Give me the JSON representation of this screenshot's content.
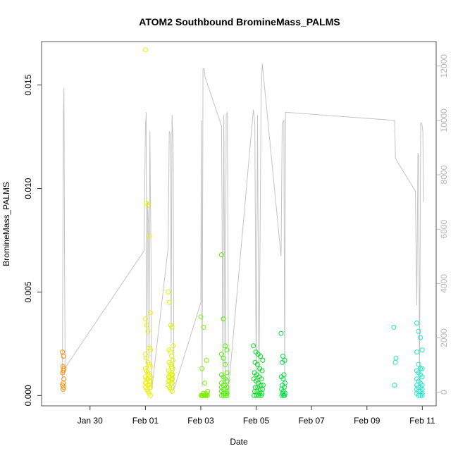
{
  "chart_data": {
    "type": "scatter",
    "title": "ATOM2 Southbound BromineMass_PALMS",
    "xlabel": "Date",
    "ylabel": "BromineMass_PALMS",
    "x_ticks": [
      "Jan 30",
      "Feb 01",
      "Feb 03",
      "Feb 05",
      "Feb 07",
      "Feb 09",
      "Feb 11"
    ],
    "x_tick_days": [
      30,
      32,
      34,
      36,
      38,
      40,
      42
    ],
    "xlim_days": [
      28.25,
      42.5
    ],
    "ylim": [
      -0.0005,
      0.0171
    ],
    "y_ticks": [
      0.0,
      0.005,
      0.01,
      0.015
    ],
    "y_tick_labels": [
      "0.000",
      "0.005",
      "0.010",
      "0.015"
    ],
    "y2lim": [
      -500,
      12900
    ],
    "y2_ticks": [
      0,
      2000,
      4000,
      6000,
      8000,
      10000,
      12000
    ],
    "y2_tick_labels": [
      "0",
      "2000",
      "4000",
      "6000",
      "8000",
      "10000",
      "12000"
    ],
    "series": [
      {
        "color": "#ff8c00",
        "day_range": [
          29.0,
          29.06
        ],
        "values": [
          0.0021,
          0.0019,
          0.0014,
          0.0013,
          0.0012,
          0.0011,
          0.0008,
          0.0006,
          0.0005,
          0.0004,
          0.0003
        ]
      },
      {
        "color": "#f0f000",
        "day_range": [
          32.0,
          32.22
        ],
        "values": [
          0.0167,
          0.0093,
          0.0092,
          0.0077,
          0.004,
          0.0037,
          0.0034,
          0.0031,
          0.0023,
          0.0022,
          0.002,
          0.0018,
          0.0016,
          0.0015,
          0.0014,
          0.0013,
          0.0012,
          0.0011,
          0.001,
          0.0009,
          0.0009,
          0.0008,
          0.0008,
          0.0007,
          0.0007,
          0.0006,
          0.0006,
          0.0005,
          0.0005,
          0.0004,
          0.0004,
          0.0003,
          0.0002,
          0.0001,
          0.0
        ]
      },
      {
        "color": "#ddf200",
        "day_range": [
          32.82,
          33.0
        ],
        "values": [
          0.005,
          0.0045,
          0.0034,
          0.0033,
          0.0024,
          0.0022,
          0.0021,
          0.0019,
          0.0017,
          0.0016,
          0.0015,
          0.0014,
          0.0013,
          0.0012,
          0.0011,
          0.001,
          0.001,
          0.0009,
          0.0009,
          0.0008,
          0.0008,
          0.0007,
          0.0007,
          0.0006,
          0.0006,
          0.0005,
          0.0004,
          0.0003,
          0.0002
        ]
      },
      {
        "color": "#7af000",
        "day_range": [
          34.0,
          34.25
        ],
        "values": [
          0.0038,
          0.0033,
          0.0017,
          0.0013,
          0.0006,
          0.0002,
          0.0001,
          0.0001,
          0.0,
          0.0,
          0.0,
          0.0,
          0.0,
          0.0,
          0.0,
          0.0,
          0.0,
          0.0
        ]
      },
      {
        "color": "#50f000",
        "day_range": [
          34.75,
          35.0
        ],
        "values": [
          0.0068,
          0.0037,
          0.0024,
          0.0022,
          0.002,
          0.0018,
          0.0015,
          0.0011,
          0.001,
          0.0009,
          0.0008,
          0.0007,
          0.0006,
          0.0005,
          0.0005,
          0.0004,
          0.0004,
          0.0003,
          0.0003,
          0.0002,
          0.0002,
          0.0001,
          0.0001,
          0.0001,
          0.0,
          0.0,
          0.0,
          0.0
        ]
      },
      {
        "color": "#00e020",
        "day_range": [
          35.9,
          36.25
        ],
        "values": [
          0.0024,
          0.0021,
          0.002,
          0.0019,
          0.0017,
          0.0016,
          0.0015,
          0.0013,
          0.0012,
          0.0011,
          0.001,
          0.0009,
          0.0008,
          0.0008,
          0.0007,
          0.0006,
          0.0005,
          0.0005,
          0.0004,
          0.0004,
          0.0003,
          0.0003,
          0.0002,
          0.0002,
          0.0001,
          0.0001,
          0.0,
          0.0,
          0.0,
          0.0
        ]
      },
      {
        "color": "#00e040",
        "day_range": [
          36.9,
          37.05
        ],
        "values": [
          0.003,
          0.0019,
          0.0017,
          0.0016,
          0.001,
          0.0009,
          0.0008,
          0.0006,
          0.0005,
          0.0004,
          0.0003,
          0.0002,
          0.0001,
          0.0001,
          0.0,
          0.0,
          0.0
        ]
      },
      {
        "color": "#20e8b0",
        "day_range": [
          40.97,
          41.05
        ],
        "values": [
          0.0033,
          0.0018,
          0.0016,
          0.0005
        ]
      },
      {
        "color": "#20e8c8",
        "day_range": [
          41.8,
          42.05
        ],
        "values": [
          0.0035,
          0.0031,
          0.0028,
          0.0022,
          0.0021,
          0.0015,
          0.0013,
          0.0013,
          0.0012,
          0.0011,
          0.001,
          0.0009,
          0.0008,
          0.0007,
          0.0006,
          0.0005,
          0.0005,
          0.0004,
          0.0004,
          0.0003,
          0.0003,
          0.0002,
          0.0002,
          0.0001,
          0.0001,
          0.0,
          0.0,
          0.0
        ]
      }
    ],
    "altitude_line": [
      [
        29.0,
        500
      ],
      [
        29.04,
        10200
      ],
      [
        29.06,
        11200
      ],
      [
        29.08,
        5000
      ],
      [
        29.1,
        900
      ],
      [
        31.95,
        5200
      ],
      [
        32.0,
        9800
      ],
      [
        32.03,
        10300
      ],
      [
        32.05,
        400
      ],
      [
        32.08,
        7000
      ],
      [
        32.11,
        6200
      ],
      [
        32.13,
        1300
      ],
      [
        32.16,
        9600
      ],
      [
        32.2,
        5300
      ],
      [
        32.23,
        100
      ],
      [
        32.82,
        5300
      ],
      [
        32.86,
        9600
      ],
      [
        32.9,
        9500
      ],
      [
        32.93,
        1800
      ],
      [
        32.96,
        10200
      ],
      [
        33.0,
        9100
      ],
      [
        33.03,
        100
      ],
      [
        34.0,
        3300
      ],
      [
        34.02,
        10000
      ],
      [
        34.05,
        200
      ],
      [
        34.08,
        11900
      ],
      [
        34.12,
        11900
      ],
      [
        34.15,
        11600
      ],
      [
        34.75,
        9800
      ],
      [
        34.8,
        300
      ],
      [
        34.83,
        10200
      ],
      [
        34.88,
        200
      ],
      [
        34.92,
        10200
      ],
      [
        34.96,
        10300
      ],
      [
        35.0,
        100
      ],
      [
        35.9,
        10400
      ],
      [
        35.95,
        9900
      ],
      [
        36.0,
        300
      ],
      [
        36.05,
        10200
      ],
      [
        36.1,
        200
      ],
      [
        36.18,
        11000
      ],
      [
        36.22,
        12100
      ],
      [
        36.9,
        5000
      ],
      [
        36.94,
        9900
      ],
      [
        37.0,
        10000
      ],
      [
        37.03,
        100
      ],
      [
        37.06,
        10300
      ],
      [
        41.0,
        10000
      ],
      [
        41.03,
        8600
      ],
      [
        41.75,
        7400
      ],
      [
        41.8,
        3200
      ],
      [
        41.84,
        8800
      ],
      [
        41.87,
        8700
      ],
      [
        41.9,
        100
      ],
      [
        41.94,
        9900
      ],
      [
        41.98,
        9900
      ],
      [
        42.02,
        9600
      ],
      [
        42.05,
        7000
      ]
    ]
  }
}
